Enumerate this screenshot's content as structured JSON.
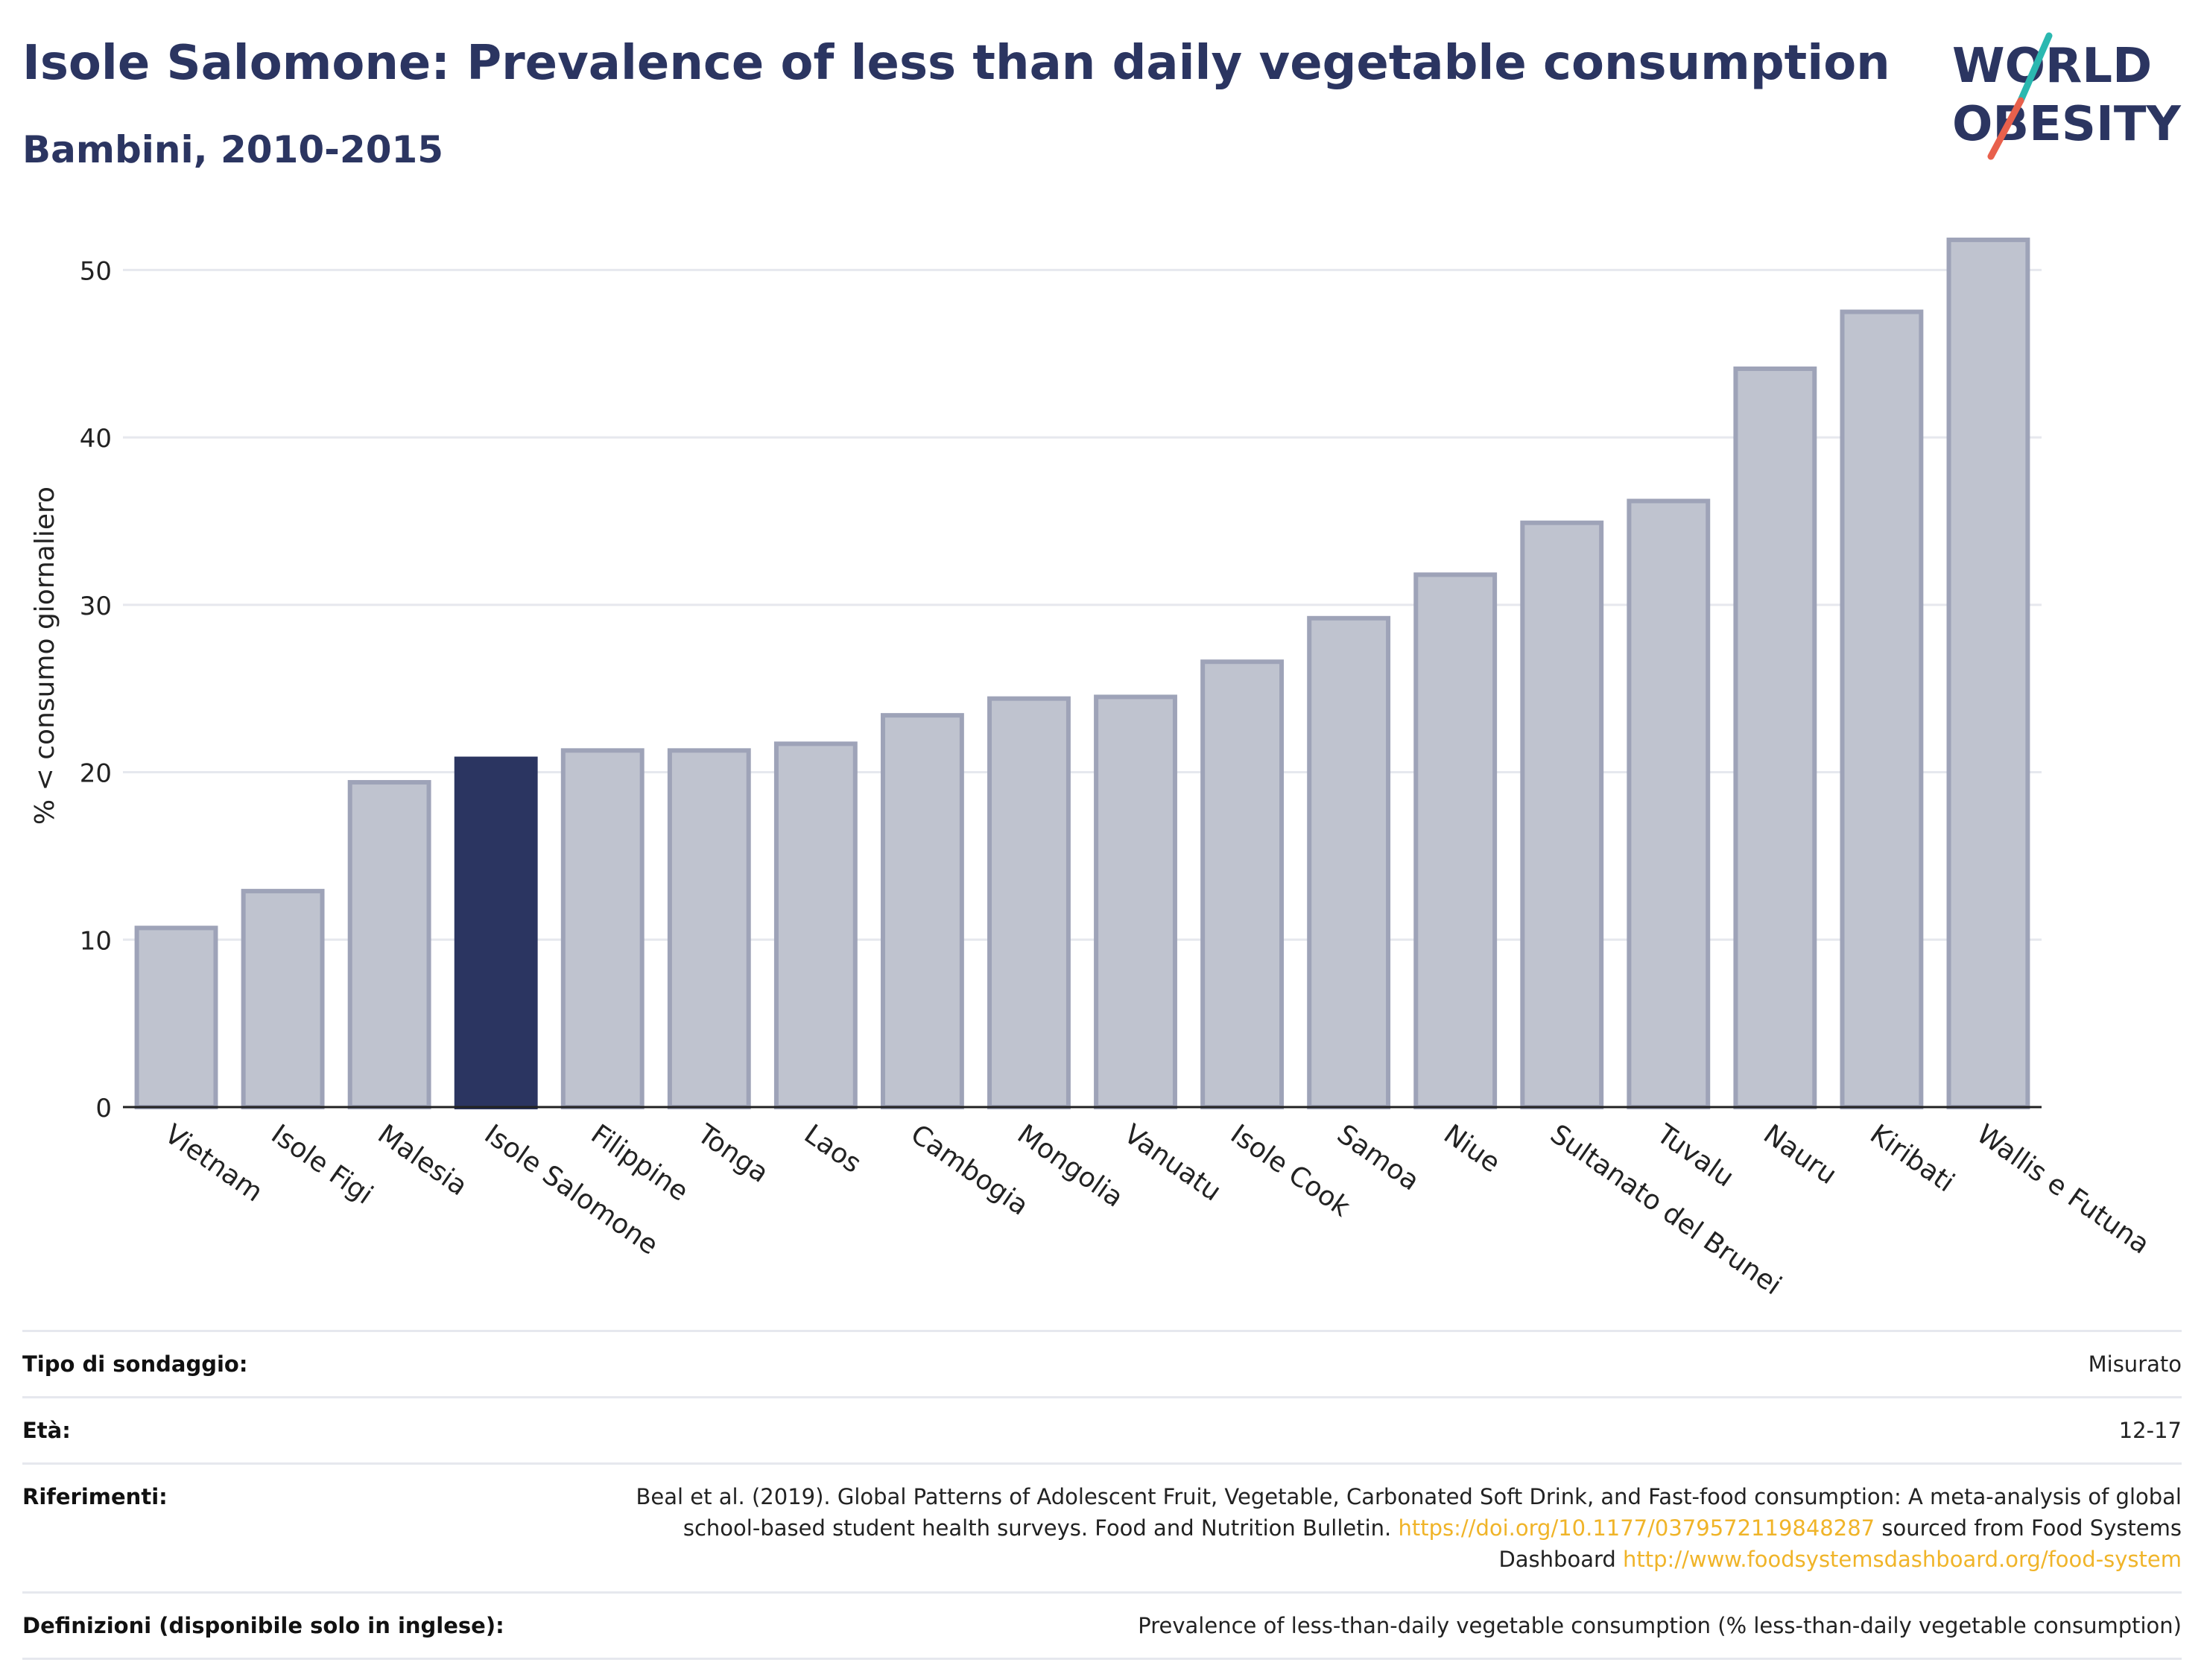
{
  "header": {
    "title": "Isole Salomone: Prevalence of less than daily vegetable consumption",
    "subtitle": "Bambini, 2010-2015"
  },
  "logo": {
    "line1": "WORLD",
    "line2": "OBESITY",
    "accent_teal": "#2bb8b0",
    "accent_red": "#e8604c",
    "text_color": "#2b3561"
  },
  "colors": {
    "highlight": "#2b3561",
    "bar": "#bfc3cf",
    "bar_stroke": "#9ea3b8",
    "grid": "#e6e8ee",
    "axis": "#222222"
  },
  "chart_data": {
    "type": "bar",
    "title": "Isole Salomone: Prevalence of less than daily vegetable consumption",
    "subtitle": "Bambini, 2010-2015",
    "xlabel": "",
    "ylabel": "% < consumo giornaliero",
    "ylim": [
      0,
      55
    ],
    "yticks": [
      0,
      10,
      20,
      30,
      40,
      50
    ],
    "grid": true,
    "highlight": "Isole Salomone",
    "categories": [
      "Vietnam",
      "Isole Figi",
      "Malesia",
      "Isole Salomone",
      "Filippine",
      "Tonga",
      "Laos",
      "Cambogia",
      "Mongolia",
      "Vanuatu",
      "Isole Cook",
      "Samoa",
      "Niue",
      "Sultanato del Brunei",
      "Tuvalu",
      "Nauru",
      "Kiribati",
      "Wallis e Futuna"
    ],
    "values": [
      10.7,
      12.9,
      19.4,
      20.8,
      21.3,
      21.3,
      21.7,
      23.4,
      24.4,
      24.5,
      26.6,
      29.2,
      31.8,
      34.9,
      36.2,
      44.1,
      47.5,
      51.8
    ]
  },
  "info": {
    "survey_label": "Tipo di sondaggio:",
    "survey_value": "Misurato",
    "age_label": "Età:",
    "age_value": "12-17",
    "refs_label": "Riferimenti:",
    "refs_text1": "Beal et al. (2019). Global Patterns of Adolescent Fruit, Vegetable, Carbonated Soft Drink, and Fast-food consumption: A meta-analysis of global school-based student health surveys. Food and Nutrition Bulletin. ",
    "refs_link1": "https://doi.org/10.1177/0379572119848287",
    "refs_text2": " sourced from Food Systems Dashboard ",
    "refs_link2": "http://www.foodsystemsdashboard.org/food-system",
    "def_label": "Definizioni (disponibile solo in inglese):",
    "def_value": "Prevalence of less-than-daily vegetable consumption (% less-than-daily vegetable consumption)"
  }
}
